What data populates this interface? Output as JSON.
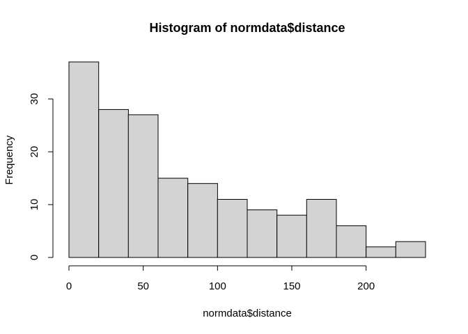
{
  "chart_data": {
    "type": "bar",
    "title": "Histogram of normdata$distance",
    "xlabel": "normdata$distance",
    "ylabel": "Frequency",
    "bins": [
      {
        "start": 0,
        "end": 20,
        "count": 37
      },
      {
        "start": 20,
        "end": 40,
        "count": 28
      },
      {
        "start": 40,
        "end": 60,
        "count": 27
      },
      {
        "start": 60,
        "end": 80,
        "count": 15
      },
      {
        "start": 80,
        "end": 100,
        "count": 14
      },
      {
        "start": 100,
        "end": 120,
        "count": 11
      },
      {
        "start": 120,
        "end": 140,
        "count": 9
      },
      {
        "start": 140,
        "end": 160,
        "count": 8
      },
      {
        "start": 160,
        "end": 180,
        "count": 11
      },
      {
        "start": 180,
        "end": 200,
        "count": 6
      },
      {
        "start": 200,
        "end": 220,
        "count": 2
      },
      {
        "start": 220,
        "end": 240,
        "count": 3
      }
    ],
    "xticks": [
      0,
      50,
      100,
      150,
      200
    ],
    "yticks": [
      0,
      10,
      20,
      30
    ],
    "xlim": [
      0,
      240
    ],
    "ylim": [
      0,
      37
    ],
    "grid": false,
    "bar_color": "#d3d3d3",
    "edge_color": "#000000"
  }
}
